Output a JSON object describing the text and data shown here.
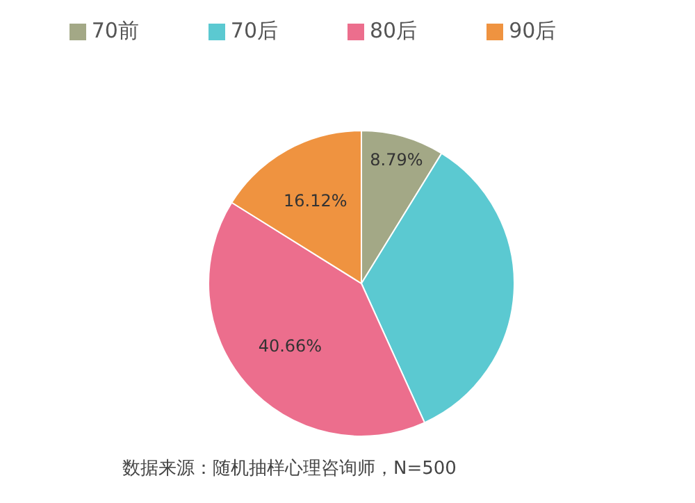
{
  "chart_data": {
    "type": "pie",
    "categories": [
      "70前",
      "70后",
      "80后",
      "90后"
    ],
    "values": [
      8.79,
      34.43,
      40.66,
      16.12
    ],
    "colors": [
      "#a3a886",
      "#5bc9d1",
      "#ec6e8d",
      "#ef9340"
    ],
    "value_labels": [
      "8.79%",
      null,
      "40.66%",
      "16.12%"
    ],
    "legend": "top",
    "annotations": [
      "数据来源：随机抽样心理咨询师，N=500"
    ]
  }
}
